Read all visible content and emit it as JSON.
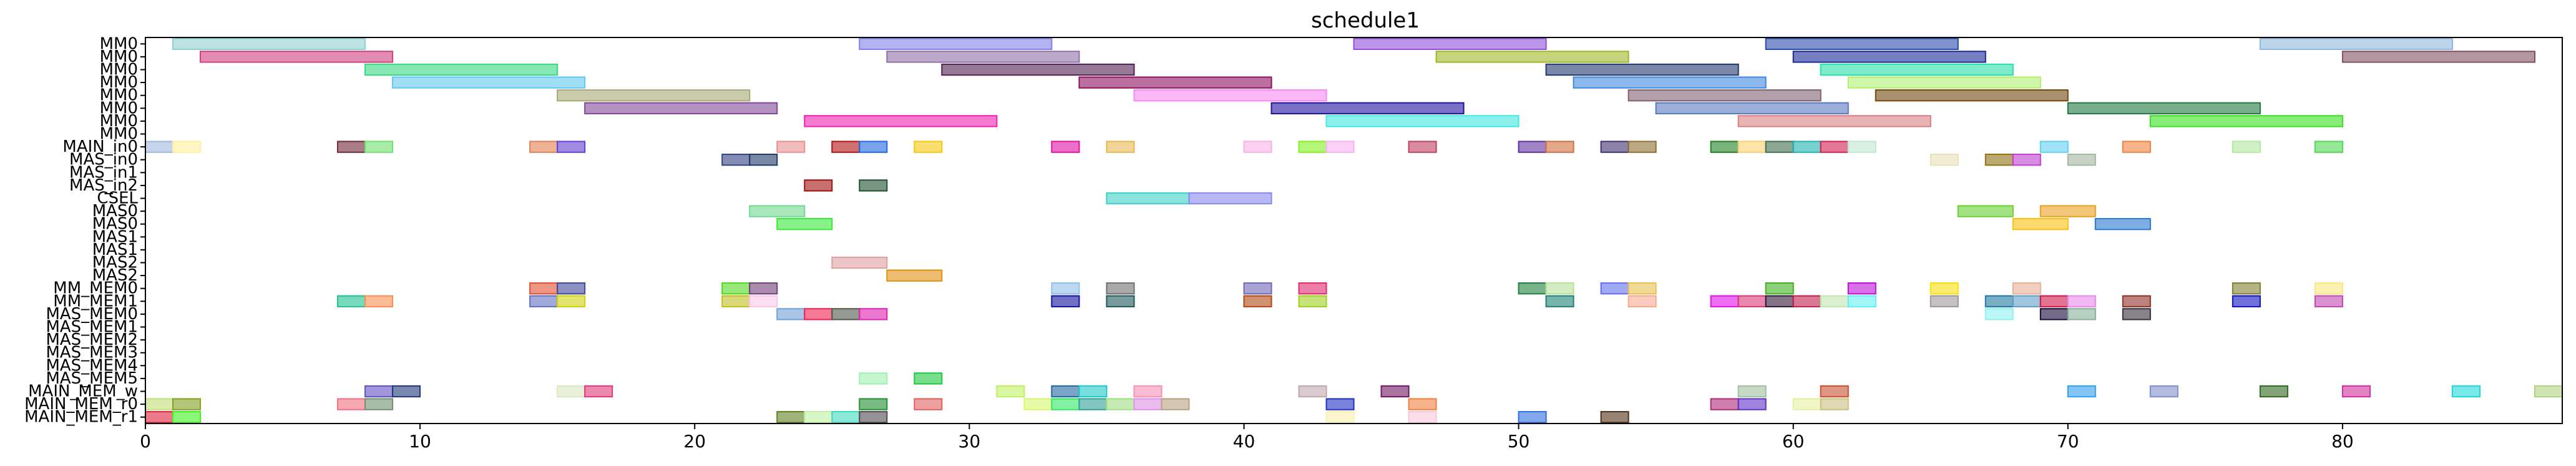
{
  "chart_data": {
    "type": "gantt",
    "title": "schedule1",
    "xlim": [
      0,
      88
    ],
    "x_ticks": [
      0,
      10,
      20,
      30,
      40,
      50,
      60,
      70,
      80
    ],
    "grid": false,
    "rows": [
      "MM0",
      "MM0",
      "MM0",
      "MM0",
      "MM0",
      "MM0",
      "MM0",
      "MM0",
      "MAIN_in0",
      "MAS_in0",
      "MAS_in1",
      "MAS_in2",
      "CSEL",
      "MAS0",
      "MAS0",
      "MAS1",
      "MAS1",
      "MAS2",
      "MAS2",
      "MM_MEM0",
      "MM_MEM1",
      "MAS_MEM0",
      "MAS_MEM1",
      "MAS_MEM2",
      "MAS_MEM3",
      "MAS_MEM4",
      "MAS_MEM5",
      "MAIN_MEM_w",
      "MAIN_MEM_r0",
      "MAIN_MEM_r1"
    ],
    "tasks": [
      {
        "row": 0,
        "start": 1,
        "end": 8,
        "color": "#8ed0d0"
      },
      {
        "row": 0,
        "start": 26,
        "end": 33,
        "color": "#8080e8"
      },
      {
        "row": 0,
        "start": 44,
        "end": 51,
        "color": "#9050d8"
      },
      {
        "row": 0,
        "start": 59,
        "end": 66,
        "color": "#2a4aa8"
      },
      {
        "row": 0,
        "start": 77,
        "end": 84,
        "color": "#90b8d8"
      },
      {
        "row": 1,
        "start": 2,
        "end": 9,
        "color": "#d04080"
      },
      {
        "row": 1,
        "start": 27,
        "end": 34,
        "color": "#9070a8"
      },
      {
        "row": 1,
        "start": 47,
        "end": 54,
        "color": "#a0b828"
      },
      {
        "row": 1,
        "start": 60,
        "end": 67,
        "color": "#1a2a98"
      },
      {
        "row": 1,
        "start": 80,
        "end": 87,
        "color": "#805060"
      },
      {
        "row": 2,
        "start": 8,
        "end": 15,
        "color": "#38d880"
      },
      {
        "row": 2,
        "start": 29,
        "end": 36,
        "color": "#502050"
      },
      {
        "row": 2,
        "start": 51,
        "end": 58,
        "color": "#203870"
      },
      {
        "row": 2,
        "start": 61,
        "end": 68,
        "color": "#28e0a8"
      },
      {
        "row": 3,
        "start": 9,
        "end": 16,
        "color": "#60c8f0"
      },
      {
        "row": 3,
        "start": 34,
        "end": 41,
        "color": "#901060"
      },
      {
        "row": 3,
        "start": 52,
        "end": 59,
        "color": "#4088e0"
      },
      {
        "row": 3,
        "start": 62,
        "end": 69,
        "color": "#b0f070"
      },
      {
        "row": 4,
        "start": 15,
        "end": 22,
        "color": "#a8a878"
      },
      {
        "row": 4,
        "start": 36,
        "end": 43,
        "color": "#f888f0"
      },
      {
        "row": 4,
        "start": 54,
        "end": 61,
        "color": "#806070"
      },
      {
        "row": 4,
        "start": 63,
        "end": 70,
        "color": "#704810"
      },
      {
        "row": 5,
        "start": 16,
        "end": 23,
        "color": "#804898"
      },
      {
        "row": 5,
        "start": 41,
        "end": 48,
        "color": "#2010a0"
      },
      {
        "row": 5,
        "start": 55,
        "end": 62,
        "color": "#5878c0"
      },
      {
        "row": 5,
        "start": 70,
        "end": 77,
        "color": "#207840"
      },
      {
        "row": 6,
        "start": 24,
        "end": 31,
        "color": "#f020b0"
      },
      {
        "row": 6,
        "start": 43,
        "end": 50,
        "color": "#40e8e0"
      },
      {
        "row": 6,
        "start": 58,
        "end": 65,
        "color": "#d88080"
      },
      {
        "row": 6,
        "start": 73,
        "end": 80,
        "color": "#38e020"
      },
      {
        "row": 8,
        "start": 0,
        "end": 1,
        "color": "#a0b8e0"
      },
      {
        "row": 8,
        "start": 1,
        "end": 2,
        "color": "#fff0a0"
      },
      {
        "row": 8,
        "start": 7,
        "end": 8,
        "color": "#702838"
      },
      {
        "row": 8,
        "start": 8,
        "end": 9,
        "color": "#70e070"
      },
      {
        "row": 8,
        "start": 14,
        "end": 15,
        "color": "#e08050"
      },
      {
        "row": 8,
        "start": 15,
        "end": 16,
        "color": "#6040d0"
      },
      {
        "row": 8,
        "start": 23,
        "end": 24,
        "color": "#e89090"
      },
      {
        "row": 8,
        "start": 25,
        "end": 26,
        "color": "#b01010"
      },
      {
        "row": 8,
        "start": 26,
        "end": 27,
        "color": "#2068e0"
      },
      {
        "row": 8,
        "start": 28,
        "end": 29,
        "color": "#f8c810"
      },
      {
        "row": 8,
        "start": 33,
        "end": 34,
        "color": "#e010a0"
      },
      {
        "row": 8,
        "start": 35,
        "end": 36,
        "color": "#e8b850"
      },
      {
        "row": 8,
        "start": 40,
        "end": 41,
        "color": "#f8b0e8"
      },
      {
        "row": 8,
        "start": 42,
        "end": 43,
        "color": "#80f020"
      },
      {
        "row": 8,
        "start": 43,
        "end": 44,
        "color": "#f8b0f0"
      },
      {
        "row": 8,
        "start": 46,
        "end": 47,
        "color": "#c04060"
      },
      {
        "row": 8,
        "start": 50,
        "end": 51,
        "color": "#6030a0"
      },
      {
        "row": 8,
        "start": 51,
        "end": 52,
        "color": "#d07040"
      },
      {
        "row": 8,
        "start": 53,
        "end": 54,
        "color": "#403070"
      },
      {
        "row": 8,
        "start": 54,
        "end": 55,
        "color": "#907030"
      },
      {
        "row": 8,
        "start": 57,
        "end": 58,
        "color": "#208020"
      },
      {
        "row": 8,
        "start": 58,
        "end": 59,
        "color": "#f8d070"
      },
      {
        "row": 8,
        "start": 59,
        "end": 60,
        "color": "#407050"
      },
      {
        "row": 8,
        "start": 60,
        "end": 61,
        "color": "#20b0b0"
      },
      {
        "row": 8,
        "start": 61,
        "end": 62,
        "color": "#d02050"
      },
      {
        "row": 8,
        "start": 62,
        "end": 63,
        "color": "#c0e8d0"
      },
      {
        "row": 8,
        "start": 69,
        "end": 70,
        "color": "#60d0f0"
      },
      {
        "row": 8,
        "start": 72,
        "end": 73,
        "color": "#f08040"
      },
      {
        "row": 8,
        "start": 76,
        "end": 77,
        "color": "#b0e8a0"
      },
      {
        "row": 8,
        "start": 79,
        "end": 80,
        "color": "#50d850"
      },
      {
        "row": 9,
        "start": 21,
        "end": 22,
        "color": "#304080"
      },
      {
        "row": 9,
        "start": 22,
        "end": 23,
        "color": "#203868"
      },
      {
        "row": 9,
        "start": 65,
        "end": 66,
        "color": "#e8e0b8"
      },
      {
        "row": 9,
        "start": 67,
        "end": 68,
        "color": "#907010"
      },
      {
        "row": 9,
        "start": 68,
        "end": 69,
        "color": "#c040d0"
      },
      {
        "row": 9,
        "start": 70,
        "end": 71,
        "color": "#a0b8a0"
      },
      {
        "row": 11,
        "start": 24,
        "end": 25,
        "color": "#a01010"
      },
      {
        "row": 11,
        "start": 26,
        "end": 27,
        "color": "#205030"
      },
      {
        "row": 12,
        "start": 35,
        "end": 38,
        "color": "#40d0c8"
      },
      {
        "row": 12,
        "start": 38,
        "end": 41,
        "color": "#8888f0"
      },
      {
        "row": 13,
        "start": 22,
        "end": 24,
        "color": "#70d890"
      },
      {
        "row": 13,
        "start": 66,
        "end": 68,
        "color": "#68d030"
      },
      {
        "row": 13,
        "start": 69,
        "end": 71,
        "color": "#e8a020"
      },
      {
        "row": 14,
        "start": 23,
        "end": 25,
        "color": "#38e838"
      },
      {
        "row": 14,
        "start": 68,
        "end": 70,
        "color": "#f8c010"
      },
      {
        "row": 14,
        "start": 71,
        "end": 73,
        "color": "#2878d0"
      },
      {
        "row": 17,
        "start": 25,
        "end": 27,
        "color": "#e0a0a0"
      },
      {
        "row": 18,
        "start": 27,
        "end": 29,
        "color": "#e09010"
      },
      {
        "row": 19,
        "start": 14,
        "end": 15,
        "color": "#e05030"
      },
      {
        "row": 19,
        "start": 15,
        "end": 16,
        "color": "#404898"
      },
      {
        "row": 19,
        "start": 21,
        "end": 22,
        "color": "#50d820"
      },
      {
        "row": 19,
        "start": 22,
        "end": 23,
        "color": "#704078"
      },
      {
        "row": 19,
        "start": 33,
        "end": 34,
        "color": "#90c0e8"
      },
      {
        "row": 19,
        "start": 35,
        "end": 36,
        "color": "#707070"
      },
      {
        "row": 19,
        "start": 40,
        "end": 41,
        "color": "#7068b8"
      },
      {
        "row": 19,
        "start": 42,
        "end": 43,
        "color": "#e02870"
      },
      {
        "row": 19,
        "start": 50,
        "end": 51,
        "color": "#208040"
      },
      {
        "row": 19,
        "start": 51,
        "end": 52,
        "color": "#b8e098"
      },
      {
        "row": 19,
        "start": 53,
        "end": 54,
        "color": "#6070f0"
      },
      {
        "row": 19,
        "start": 54,
        "end": 55,
        "color": "#e8c050"
      },
      {
        "row": 19,
        "start": 59,
        "end": 60,
        "color": "#40b020"
      },
      {
        "row": 19,
        "start": 62,
        "end": 63,
        "color": "#c010d8"
      },
      {
        "row": 19,
        "start": 65,
        "end": 66,
        "color": "#f8e010"
      },
      {
        "row": 19,
        "start": 68,
        "end": 69,
        "color": "#e8b098"
      },
      {
        "row": 19,
        "start": 76,
        "end": 77,
        "color": "#808030"
      },
      {
        "row": 19,
        "start": 79,
        "end": 80,
        "color": "#f8e880"
      },
      {
        "row": 20,
        "start": 7,
        "end": 8,
        "color": "#20c090"
      },
      {
        "row": 20,
        "start": 8,
        "end": 9,
        "color": "#f89050"
      },
      {
        "row": 20,
        "start": 14,
        "end": 15,
        "color": "#6070c0"
      },
      {
        "row": 20,
        "start": 15,
        "end": 16,
        "color": "#d0d010"
      },
      {
        "row": 20,
        "start": 21,
        "end": 22,
        "color": "#c0c020"
      },
      {
        "row": 20,
        "start": 22,
        "end": 23,
        "color": "#f8c8e8"
      },
      {
        "row": 20,
        "start": 33,
        "end": 34,
        "color": "#1010a0"
      },
      {
        "row": 20,
        "start": 35,
        "end": 36,
        "color": "#205858"
      },
      {
        "row": 20,
        "start": 40,
        "end": 41,
        "color": "#b04810"
      },
      {
        "row": 20,
        "start": 42,
        "end": 43,
        "color": "#a0d020"
      },
      {
        "row": 20,
        "start": 51,
        "end": 52,
        "color": "#208078"
      },
      {
        "row": 20,
        "start": 54,
        "end": 55,
        "color": "#f8a890"
      },
      {
        "row": 20,
        "start": 57,
        "end": 58,
        "color": "#e010e8"
      },
      {
        "row": 20,
        "start": 58,
        "end": 59,
        "color": "#d83878"
      },
      {
        "row": 20,
        "start": 59,
        "end": 60,
        "color": "#301838"
      },
      {
        "row": 20,
        "start": 60,
        "end": 61,
        "color": "#c02050"
      },
      {
        "row": 20,
        "start": 61,
        "end": 62,
        "color": "#c0e8b0"
      },
      {
        "row": 20,
        "start": 62,
        "end": 63,
        "color": "#60f0f0"
      },
      {
        "row": 20,
        "start": 65,
        "end": 66,
        "color": "#a09898"
      },
      {
        "row": 20,
        "start": 67,
        "end": 68,
        "color": "#2078a0"
      },
      {
        "row": 20,
        "start": 68,
        "end": 69,
        "color": "#60a0c8"
      },
      {
        "row": 20,
        "start": 69,
        "end": 70,
        "color": "#d01848"
      },
      {
        "row": 20,
        "start": 70,
        "end": 71,
        "color": "#e888e8"
      },
      {
        "row": 20,
        "start": 72,
        "end": 73,
        "color": "#903028"
      },
      {
        "row": 20,
        "start": 76,
        "end": 77,
        "color": "#1010c0"
      },
      {
        "row": 20,
        "start": 79,
        "end": 80,
        "color": "#c048b0"
      },
      {
        "row": 21,
        "start": 23,
        "end": 24,
        "color": "#70a0d8"
      },
      {
        "row": 21,
        "start": 24,
        "end": 25,
        "color": "#f02050"
      },
      {
        "row": 21,
        "start": 25,
        "end": 26,
        "color": "#505848"
      },
      {
        "row": 21,
        "start": 26,
        "end": 27,
        "color": "#e020b0"
      },
      {
        "row": 21,
        "start": 67,
        "end": 68,
        "color": "#90f0f0"
      },
      {
        "row": 21,
        "start": 69,
        "end": 70,
        "color": "#180838"
      },
      {
        "row": 21,
        "start": 70,
        "end": 71,
        "color": "#88b098"
      },
      {
        "row": 21,
        "start": 72,
        "end": 73,
        "color": "#383038"
      },
      {
        "row": 26,
        "start": 26,
        "end": 27,
        "color": "#a0f0b0"
      },
      {
        "row": 26,
        "start": 28,
        "end": 29,
        "color": "#20c840"
      },
      {
        "row": 27,
        "start": 8,
        "end": 9,
        "color": "#6050c0"
      },
      {
        "row": 27,
        "start": 9,
        "end": 10,
        "color": "#203878"
      },
      {
        "row": 27,
        "start": 15,
        "end": 16,
        "color": "#d8e8c0"
      },
      {
        "row": 27,
        "start": 16,
        "end": 17,
        "color": "#e03878"
      },
      {
        "row": 27,
        "start": 31,
        "end": 32,
        "color": "#c0f060"
      },
      {
        "row": 27,
        "start": 33,
        "end": 34,
        "color": "#2068a0"
      },
      {
        "row": 27,
        "start": 34,
        "end": 35,
        "color": "#20c8c8"
      },
      {
        "row": 27,
        "start": 36,
        "end": 37,
        "color": "#f890b8"
      },
      {
        "row": 27,
        "start": 42,
        "end": 43,
        "color": "#c0a8b0"
      },
      {
        "row": 27,
        "start": 45,
        "end": 46,
        "color": "#701860"
      },
      {
        "row": 27,
        "start": 58,
        "end": 59,
        "color": "#a0c0a0"
      },
      {
        "row": 27,
        "start": 61,
        "end": 62,
        "color": "#c85030"
      },
      {
        "row": 27,
        "start": 70,
        "end": 71,
        "color": "#30a0f0"
      },
      {
        "row": 27,
        "start": 73,
        "end": 74,
        "color": "#8090c8"
      },
      {
        "row": 27,
        "start": 77,
        "end": 78,
        "color": "#306820"
      },
      {
        "row": 27,
        "start": 80,
        "end": 81,
        "color": "#d030a0"
      },
      {
        "row": 27,
        "start": 84,
        "end": 85,
        "color": "#20d8d8"
      },
      {
        "row": 27,
        "start": 87,
        "end": 88,
        "color": "#b0d080"
      },
      {
        "row": 28,
        "start": 0,
        "end": 1,
        "color": "#c0e078"
      },
      {
        "row": 28,
        "start": 1,
        "end": 2,
        "color": "#80a020"
      },
      {
        "row": 28,
        "start": 7,
        "end": 8,
        "color": "#f07080"
      },
      {
        "row": 28,
        "start": 8,
        "end": 9,
        "color": "#709070"
      },
      {
        "row": 28,
        "start": 26,
        "end": 27,
        "color": "#209030"
      },
      {
        "row": 28,
        "start": 28,
        "end": 29,
        "color": "#e06060"
      },
      {
        "row": 28,
        "start": 32,
        "end": 33,
        "color": "#d8f870"
      },
      {
        "row": 28,
        "start": 33,
        "end": 34,
        "color": "#30e860"
      },
      {
        "row": 28,
        "start": 34,
        "end": 35,
        "color": "#30a098"
      },
      {
        "row": 28,
        "start": 35,
        "end": 36,
        "color": "#a0e080"
      },
      {
        "row": 28,
        "start": 36,
        "end": 37,
        "color": "#e090e8"
      },
      {
        "row": 28,
        "start": 37,
        "end": 38,
        "color": "#b8a080"
      },
      {
        "row": 28,
        "start": 43,
        "end": 44,
        "color": "#2030c0"
      },
      {
        "row": 28,
        "start": 46,
        "end": 47,
        "color": "#f08040"
      },
      {
        "row": 28,
        "start": 57,
        "end": 58,
        "color": "#b02878"
      },
      {
        "row": 28,
        "start": 58,
        "end": 59,
        "color": "#6030c8"
      },
      {
        "row": 28,
        "start": 60,
        "end": 61,
        "color": "#e8f0a0"
      },
      {
        "row": 28,
        "start": 61,
        "end": 62,
        "color": "#c8c080"
      },
      {
        "row": 29,
        "start": 0,
        "end": 1,
        "color": "#e02040"
      },
      {
        "row": 29,
        "start": 1,
        "end": 2,
        "color": "#40f020"
      },
      {
        "row": 29,
        "start": 23,
        "end": 24,
        "color": "#608020"
      },
      {
        "row": 29,
        "start": 24,
        "end": 25,
        "color": "#c0f0a0"
      },
      {
        "row": 29,
        "start": 25,
        "end": 26,
        "color": "#40d8c0"
      },
      {
        "row": 29,
        "start": 26,
        "end": 27,
        "color": "#504850"
      },
      {
        "row": 29,
        "start": 43,
        "end": 44,
        "color": "#f8f0b0"
      },
      {
        "row": 29,
        "start": 46,
        "end": 47,
        "color": "#f8c8d8"
      },
      {
        "row": 29,
        "start": 50,
        "end": 51,
        "color": "#3070e0"
      },
      {
        "row": 29,
        "start": 53,
        "end": 54,
        "color": "#503018"
      }
    ]
  }
}
